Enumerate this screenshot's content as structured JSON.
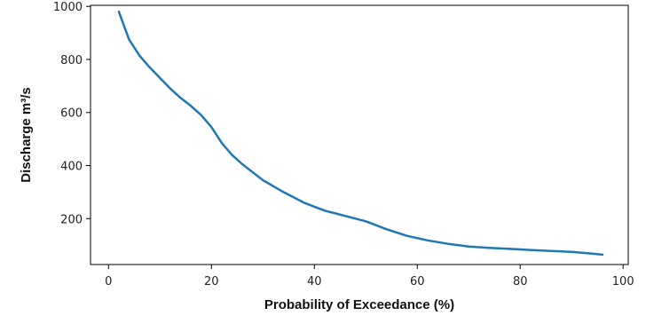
{
  "chart_data": {
    "type": "line",
    "xlabel": "Probability of Exceedance (%)",
    "ylabel": "Discharge m³/s",
    "xlim": [
      -3.5,
      101
    ],
    "ylim": [
      27,
      1004
    ],
    "xticks": [
      0,
      20,
      40,
      60,
      80,
      100
    ],
    "yticks": [
      200,
      400,
      600,
      800,
      1000
    ],
    "grid": false,
    "series": [
      {
        "color": "#1f77b4",
        "x": [
          2,
          4,
          6,
          8,
          10,
          12,
          14,
          16,
          18,
          20,
          22,
          24,
          26,
          28,
          30,
          34,
          38,
          42,
          46,
          50,
          54,
          58,
          62,
          66,
          70,
          74,
          78,
          82,
          86,
          90,
          94,
          96
        ],
        "y": [
          980,
          875,
          815,
          770,
          730,
          690,
          655,
          625,
          590,
          545,
          485,
          440,
          405,
          375,
          345,
          300,
          260,
          230,
          210,
          190,
          160,
          135,
          118,
          105,
          95,
          90,
          86,
          82,
          78,
          75,
          68,
          64
        ]
      }
    ]
  }
}
